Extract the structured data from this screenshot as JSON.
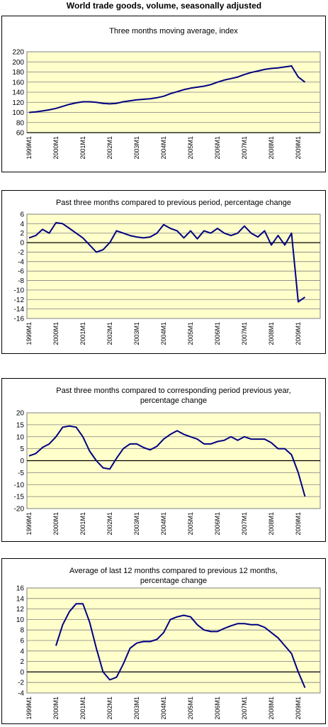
{
  "title": "World trade goods, volume, seasonally adjusted",
  "chart_data": [
    {
      "type": "line",
      "title": "Three months moving average, index",
      "color": "#000080",
      "grid": true,
      "categories": [
        "1999M1",
        null,
        null,
        null,
        "2000M1",
        null,
        null,
        null,
        "2001M1",
        null,
        null,
        null,
        "2002M1",
        null,
        null,
        null,
        "2003M1",
        null,
        null,
        null,
        "2004M1",
        null,
        null,
        null,
        "2005M1",
        null,
        null,
        null,
        "2006M1",
        null,
        null,
        null,
        "2007M1",
        null,
        null,
        null,
        "2008M1",
        null,
        null,
        null,
        "2009M1",
        null
      ],
      "values": [
        100,
        101,
        103,
        105,
        108,
        112,
        116,
        119,
        121,
        121,
        120,
        118,
        117,
        118,
        121,
        123,
        125,
        126,
        127,
        129,
        132,
        137,
        141,
        145,
        148,
        150,
        152,
        155,
        160,
        164,
        167,
        170,
        175,
        179,
        182,
        185,
        187,
        188,
        190,
        192,
        170,
        160
      ],
      "ylim": [
        60,
        220
      ],
      "yticks": [
        60,
        80,
        100,
        120,
        140,
        160,
        180,
        200,
        220
      ]
    },
    {
      "type": "line",
      "title": "Past three months compared to previous period,  percentage change",
      "color": "#000080",
      "grid": true,
      "categories": [
        "1999M1",
        null,
        null,
        null,
        "2000M1",
        null,
        null,
        null,
        "2001M1",
        null,
        null,
        null,
        "2002M1",
        null,
        null,
        null,
        "2003M1",
        null,
        null,
        null,
        "2004M1",
        null,
        null,
        null,
        "2005M1",
        null,
        null,
        null,
        "2006M1",
        null,
        null,
        null,
        "2007M1",
        null,
        null,
        null,
        "2008M1",
        null,
        null,
        null,
        "2009M1",
        null
      ],
      "values": [
        1,
        1.5,
        2.8,
        2,
        4.2,
        4,
        3,
        2,
        1,
        -0.5,
        -2,
        -1.5,
        0,
        2.5,
        2,
        1.5,
        1.2,
        1,
        1.2,
        2,
        3.8,
        3,
        2.5,
        1,
        2.5,
        0.8,
        2.5,
        2,
        3,
        2,
        1.5,
        2,
        3.5,
        2,
        1.2,
        2.5,
        -0.5,
        1.5,
        -0.5,
        2,
        -12.5,
        -11.5
      ],
      "ylim": [
        -16,
        6
      ],
      "yticks": [
        -16,
        -14,
        -12,
        -10,
        -8,
        -6,
        -4,
        -2,
        0,
        2,
        4,
        6
      ]
    },
    {
      "type": "line",
      "title": "Past three months compared to corresponding period previous year, percentage change",
      "color": "#000080",
      "grid": true,
      "categories": [
        "1999M1",
        null,
        null,
        null,
        "2000M1",
        null,
        null,
        null,
        "2001M1",
        null,
        null,
        null,
        "2002M1",
        null,
        null,
        null,
        "2003M1",
        null,
        null,
        null,
        "2004M1",
        null,
        null,
        null,
        "2005M1",
        null,
        null,
        null,
        "2006M1",
        null,
        null,
        null,
        "2007M1",
        null,
        null,
        null,
        "2008M1",
        null,
        null,
        null,
        "2009M1",
        null
      ],
      "values": [
        2,
        3,
        5.5,
        7,
        10,
        14,
        14.5,
        14,
        10,
        4,
        0,
        -3,
        -3.5,
        1,
        5,
        7,
        7,
        5.5,
        4.5,
        6,
        9,
        11,
        12.5,
        11,
        10,
        9,
        7,
        7,
        8,
        8.5,
        10,
        8.5,
        10,
        9,
        9,
        9,
        7.5,
        5,
        5,
        2.5,
        -5,
        -15
      ],
      "ylim": [
        -20,
        20
      ],
      "yticks": [
        -20,
        -15,
        -10,
        -5,
        0,
        5,
        10,
        15,
        20
      ]
    },
    {
      "type": "line",
      "title": "Average of last 12 months compared to previous 12 months, percentage change",
      "color": "#000080",
      "grid": true,
      "categories": [
        "1999M1",
        null,
        null,
        null,
        "2000M1",
        null,
        null,
        null,
        "2001M1",
        null,
        null,
        null,
        "2002M1",
        null,
        null,
        null,
        "2003M1",
        null,
        null,
        null,
        "2004M1",
        null,
        null,
        null,
        "2005M1",
        null,
        null,
        null,
        "2006M1",
        null,
        null,
        null,
        "2007M1",
        null,
        null,
        null,
        "2008M1",
        null,
        null,
        null,
        "2009M1",
        null
      ],
      "values": [
        null,
        null,
        null,
        null,
        5,
        9,
        11.5,
        13,
        13,
        9.5,
        4.5,
        0,
        -1.5,
        -1,
        1.5,
        4.5,
        5.5,
        5.8,
        5.8,
        6.2,
        7.5,
        10,
        10.5,
        10.8,
        10.5,
        9,
        8,
        7.7,
        7.7,
        8.3,
        8.8,
        9.2,
        9.2,
        9,
        9,
        8.5,
        7.5,
        6.5,
        5,
        3.5,
        0,
        -3
      ],
      "ylim": [
        -4,
        16
      ],
      "yticks": [
        -4,
        -2,
        0,
        2,
        4,
        6,
        8,
        10,
        12,
        14,
        16
      ]
    }
  ]
}
